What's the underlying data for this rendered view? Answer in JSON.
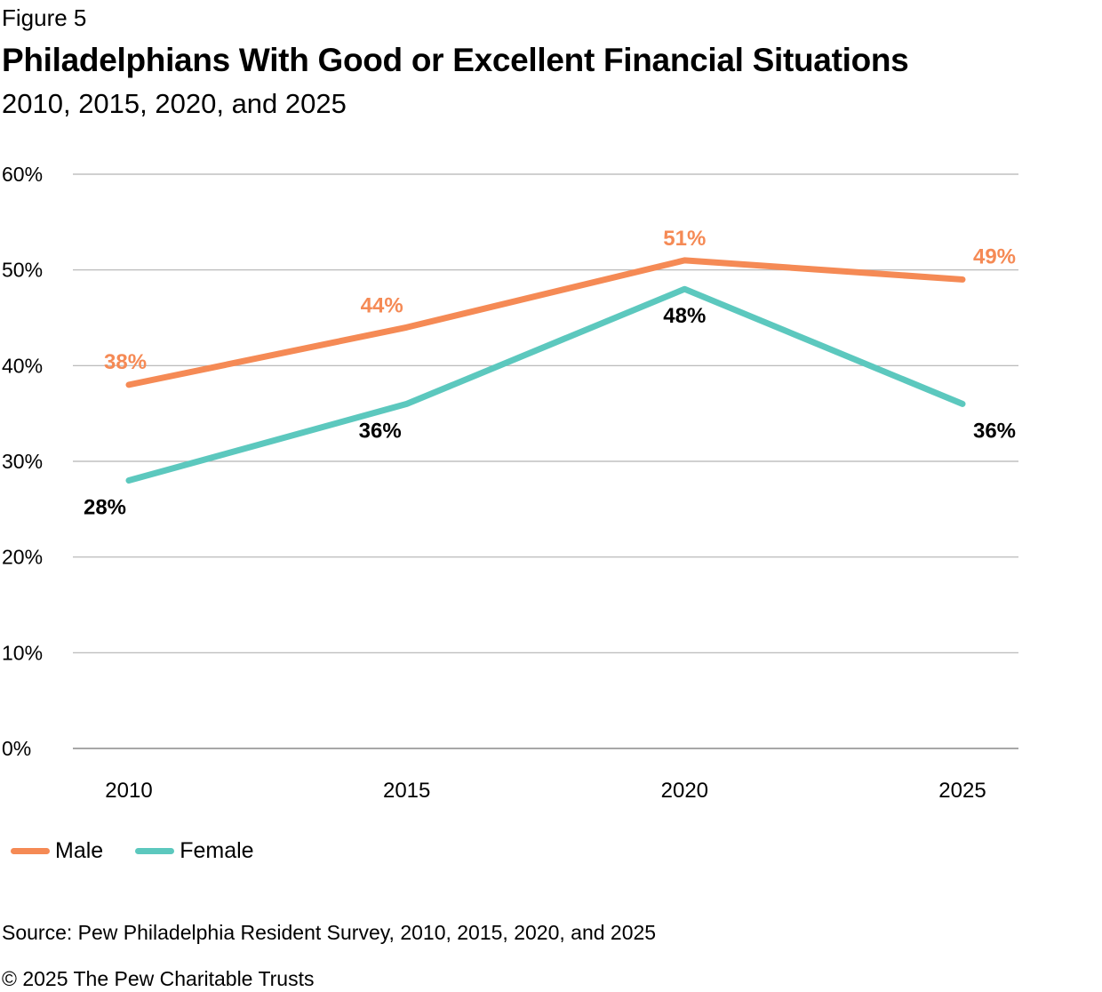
{
  "figure_label": "Figure 5",
  "source": "Source: Pew Philadelphia Resident Survey, 2010, 2015, 2020, and 2025",
  "copyright": "© 2025 The Pew Charitable Trusts",
  "chart_data": {
    "type": "line",
    "title": "Philadelphians With Good or Excellent Financial Situations",
    "subtitle": "2010, 2015, 2020, and 2025",
    "xlabel": "",
    "ylabel": "",
    "categories": [
      "2010",
      "2015",
      "2020",
      "2025"
    ],
    "ylim": [
      0,
      60
    ],
    "yticks": [
      0,
      10,
      20,
      30,
      40,
      50,
      60
    ],
    "ytick_labels": [
      "0%",
      "10%",
      "20%",
      "30%",
      "40%",
      "50%",
      "60%"
    ],
    "grid": true,
    "legend_placement": "bottom-left",
    "series": [
      {
        "name": "Male",
        "color": "#F58A55",
        "values": [
          38,
          44,
          51,
          49
        ],
        "labels": [
          "38%",
          "44%",
          "51%",
          "49%"
        ]
      },
      {
        "name": "Female",
        "color": "#5CC8BE",
        "values": [
          28,
          36,
          48,
          36
        ],
        "labels": [
          "28%",
          "36%",
          "48%",
          "36%"
        ]
      }
    ]
  }
}
